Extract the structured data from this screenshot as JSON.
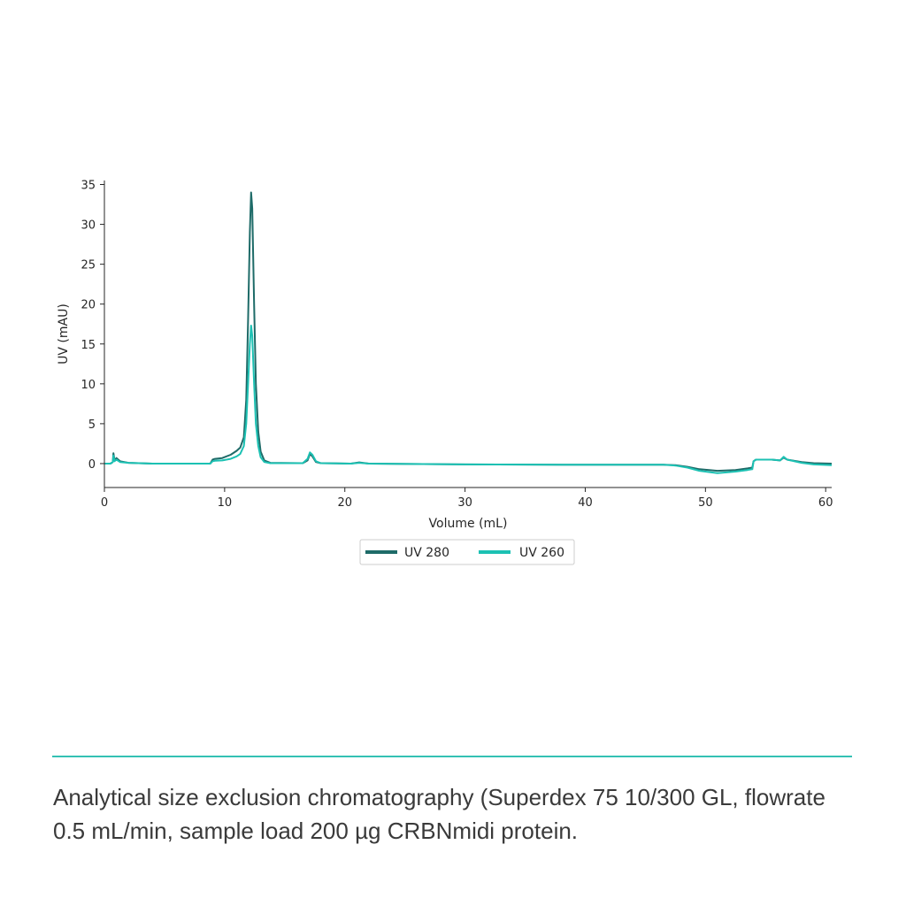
{
  "colors": {
    "uv280": "#1e6b68",
    "uv260": "#1cc1b3",
    "accent": "#34c1b4"
  },
  "chart_data": {
    "type": "line",
    "title": "",
    "xlabel": "Volume (mL)",
    "ylabel": "UV (mAU)",
    "xlim": [
      0,
      60.5
    ],
    "ylim": [
      -3,
      35.5
    ],
    "xticks": [
      0,
      10,
      20,
      30,
      40,
      50,
      60
    ],
    "yticks": [
      0,
      5,
      10,
      15,
      20,
      25,
      30,
      35
    ],
    "grid": false,
    "legend_position": "bottom-center",
    "series": [
      {
        "name": "UV 280",
        "color": "#1e6b68",
        "points": [
          [
            0,
            0
          ],
          [
            0.5,
            0
          ],
          [
            0.7,
            0.2
          ],
          [
            0.75,
            1.3
          ],
          [
            0.85,
            0.4
          ],
          [
            1.0,
            0.7
          ],
          [
            1.3,
            0.3
          ],
          [
            2,
            0.1
          ],
          [
            4,
            0
          ],
          [
            8,
            0
          ],
          [
            8.8,
            0
          ],
          [
            9.0,
            0.5
          ],
          [
            9.2,
            0.6
          ],
          [
            9.8,
            0.7
          ],
          [
            10.5,
            1.1
          ],
          [
            11,
            1.6
          ],
          [
            11.3,
            2
          ],
          [
            11.6,
            3.3
          ],
          [
            11.8,
            8
          ],
          [
            11.95,
            18
          ],
          [
            12.1,
            29
          ],
          [
            12.2,
            34
          ],
          [
            12.3,
            32
          ],
          [
            12.45,
            20
          ],
          [
            12.6,
            10
          ],
          [
            12.8,
            4
          ],
          [
            13.0,
            1.5
          ],
          [
            13.3,
            0.4
          ],
          [
            13.8,
            0.1
          ],
          [
            16.5,
            0.05
          ],
          [
            16.9,
            0.4
          ],
          [
            17.1,
            1.2
          ],
          [
            17.3,
            0.9
          ],
          [
            17.6,
            0.2
          ],
          [
            18,
            0.05
          ],
          [
            20.5,
            0
          ],
          [
            21.2,
            0.15
          ],
          [
            22.0,
            0
          ],
          [
            30,
            -0.1
          ],
          [
            40,
            -0.15
          ],
          [
            46.5,
            -0.15
          ],
          [
            47.5,
            -0.2
          ],
          [
            48.5,
            -0.4
          ],
          [
            49.5,
            -0.7
          ],
          [
            51.0,
            -0.9
          ],
          [
            52.5,
            -0.8
          ],
          [
            53.5,
            -0.6
          ],
          [
            53.9,
            -0.5
          ],
          [
            54.0,
            0.3
          ],
          [
            54.2,
            0.5
          ],
          [
            55.5,
            0.5
          ],
          [
            56.2,
            0.4
          ],
          [
            56.5,
            0.75
          ],
          [
            56.8,
            0.5
          ],
          [
            58,
            0.2
          ],
          [
            59,
            0.05
          ],
          [
            60.5,
            0
          ]
        ]
      },
      {
        "name": "UV 260",
        "color": "#1cc1b3",
        "points": [
          [
            0,
            0
          ],
          [
            0.5,
            0
          ],
          [
            0.7,
            0.2
          ],
          [
            0.75,
            1.0
          ],
          [
            0.85,
            0.3
          ],
          [
            1.0,
            0.5
          ],
          [
            1.3,
            0.2
          ],
          [
            2,
            0.1
          ],
          [
            4,
            0
          ],
          [
            8,
            0
          ],
          [
            8.8,
            0
          ],
          [
            9.0,
            0.3
          ],
          [
            9.2,
            0.35
          ],
          [
            9.8,
            0.4
          ],
          [
            10.5,
            0.6
          ],
          [
            11,
            0.9
          ],
          [
            11.3,
            1.2
          ],
          [
            11.6,
            2.2
          ],
          [
            11.8,
            5
          ],
          [
            11.95,
            10
          ],
          [
            12.1,
            15
          ],
          [
            12.2,
            17.3
          ],
          [
            12.3,
            16
          ],
          [
            12.45,
            10
          ],
          [
            12.6,
            5
          ],
          [
            12.8,
            2.2
          ],
          [
            13.0,
            0.8
          ],
          [
            13.3,
            0.2
          ],
          [
            13.8,
            0.05
          ],
          [
            16.5,
            0.05
          ],
          [
            16.9,
            0.6
          ],
          [
            17.1,
            1.4
          ],
          [
            17.3,
            1.1
          ],
          [
            17.6,
            0.3
          ],
          [
            18,
            0.05
          ],
          [
            20.5,
            0
          ],
          [
            21.2,
            0.1
          ],
          [
            22.0,
            0
          ],
          [
            30,
            -0.1
          ],
          [
            40,
            -0.15
          ],
          [
            46.5,
            -0.15
          ],
          [
            47.5,
            -0.25
          ],
          [
            48.5,
            -0.5
          ],
          [
            49.5,
            -0.9
          ],
          [
            51.0,
            -1.2
          ],
          [
            52.5,
            -1.0
          ],
          [
            53.5,
            -0.8
          ],
          [
            53.9,
            -0.7
          ],
          [
            54.0,
            0.3
          ],
          [
            54.2,
            0.5
          ],
          [
            55.5,
            0.5
          ],
          [
            56.2,
            0.4
          ],
          [
            56.5,
            0.85
          ],
          [
            56.8,
            0.5
          ],
          [
            58,
            0.1
          ],
          [
            59,
            -0.1
          ],
          [
            60.5,
            -0.2
          ]
        ]
      }
    ]
  },
  "caption": "Analytical size exclusion chromatography (Superdex 75 10/300 GL, flowrate 0.5 mL/min, sample load 200 µg CRBNmidi protein."
}
